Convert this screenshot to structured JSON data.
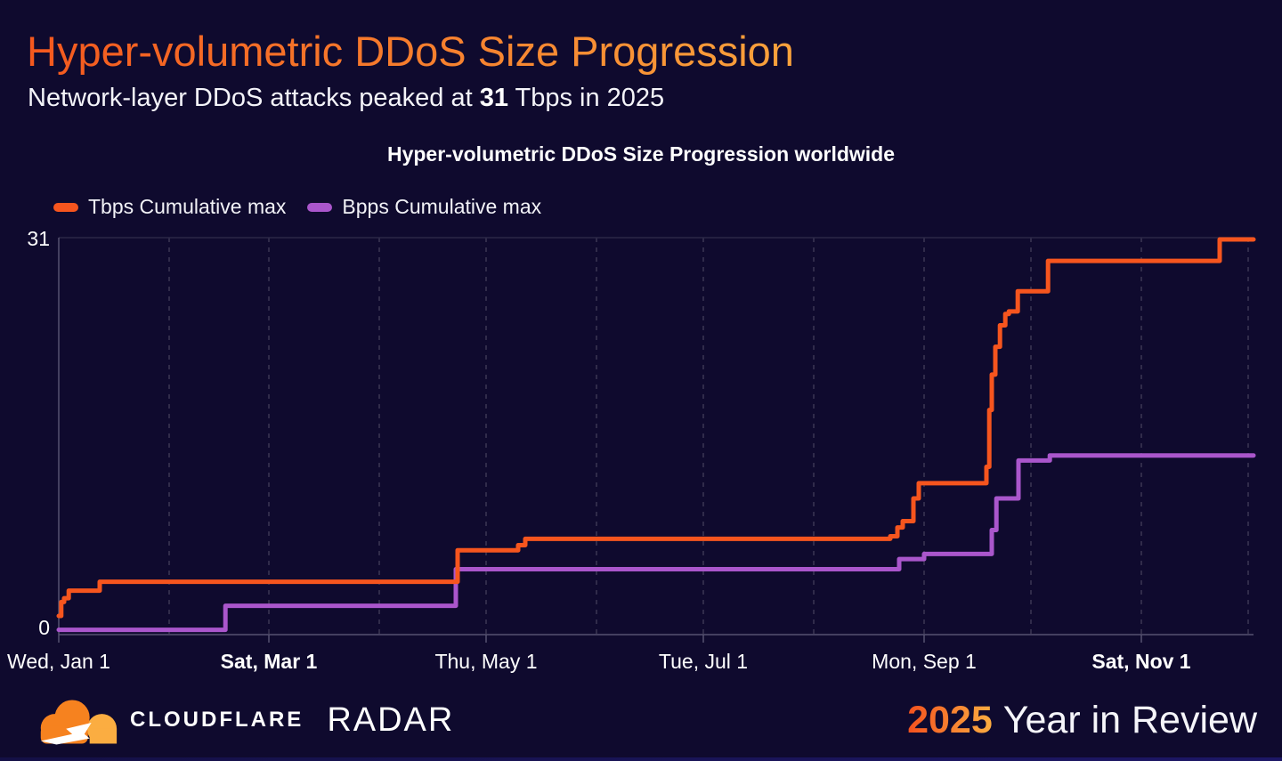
{
  "header": {
    "title": "Hyper-volumetric DDoS Size Progression",
    "subtitle_prefix": "Network-layer DDoS attacks peaked at ",
    "subtitle_peak": "31",
    "subtitle_suffix": " Tbps in 2025"
  },
  "colors": {
    "background": "#0F0A2E",
    "title_gradient_start": "#F4581E",
    "title_gradient_end": "#F9A23C",
    "tbps_line": "#F6551E",
    "bpps_line": "#AA56CC",
    "axis": "#575371",
    "gridline": "#3B3654",
    "frame_top": "#2B2747",
    "label_text": "#FFFFFF"
  },
  "chart_data": {
    "type": "line",
    "step": true,
    "title": "Hyper-volumetric DDoS Size Progression worldwide",
    "legend_position": "top-left",
    "grid": "vertical-dashed-monthly",
    "xlabel": "",
    "ylabel": "",
    "ylim": [
      0,
      31
    ],
    "y_ticks": [
      "0",
      "31"
    ],
    "x_axis": {
      "unit": "days-since-Jan-1-2025",
      "day_max": 335.5,
      "month_gridline_days": [
        31,
        59,
        90,
        120,
        151,
        181,
        212,
        243,
        273,
        304,
        334
      ],
      "tick_labels": [
        {
          "day": 0,
          "label": "Wed, Jan 1",
          "bold": false
        },
        {
          "day": 59,
          "label": "Sat, Mar 1",
          "bold": true
        },
        {
          "day": 120,
          "label": "Thu, May 1",
          "bold": false
        },
        {
          "day": 181,
          "label": "Tue, Jul 1",
          "bold": false
        },
        {
          "day": 243,
          "label": "Mon, Sep 1",
          "bold": false
        },
        {
          "day": 304,
          "label": "Sat, Nov 1",
          "bold": true
        }
      ]
    },
    "series": [
      {
        "name": "Tbps Cumulative max",
        "color": "#F6551E",
        "points": [
          [
            0,
            1.2
          ],
          [
            0.7,
            2.3
          ],
          [
            1.5,
            2.6
          ],
          [
            2.8,
            3.2
          ],
          [
            11.5,
            3.9
          ],
          [
            112,
            6.4
          ],
          [
            129,
            6.8
          ],
          [
            131,
            7.3
          ],
          [
            233.5,
            7.5
          ],
          [
            235.5,
            8.2
          ],
          [
            237,
            8.7
          ],
          [
            240,
            10.5
          ],
          [
            241.5,
            11.7
          ],
          [
            260.5,
            13.0
          ],
          [
            261.3,
            17.5
          ],
          [
            262,
            20.3
          ],
          [
            263,
            22.5
          ],
          [
            264.3,
            24.2
          ],
          [
            265.8,
            25.1
          ],
          [
            266.8,
            25.3
          ],
          [
            269.3,
            26.9
          ],
          [
            277.8,
            29.3
          ],
          [
            326,
            31
          ]
        ]
      },
      {
        "name": "Bpps Cumulative max",
        "color": "#AA56CC",
        "points": [
          [
            0,
            0.1
          ],
          [
            46.8,
            2.0
          ],
          [
            111.5,
            4.9
          ],
          [
            236,
            5.7
          ],
          [
            243,
            6.1
          ],
          [
            262,
            8.0
          ],
          [
            263.3,
            10.5
          ],
          [
            269.5,
            13.5
          ],
          [
            278.3,
            13.9
          ]
        ]
      }
    ]
  },
  "footer": {
    "brand": "CLOUDFLARE",
    "product": "RADAR",
    "year": "2025",
    "tagline": "Year in Review",
    "logo_icon": "cloudflare-cloud-logo"
  }
}
